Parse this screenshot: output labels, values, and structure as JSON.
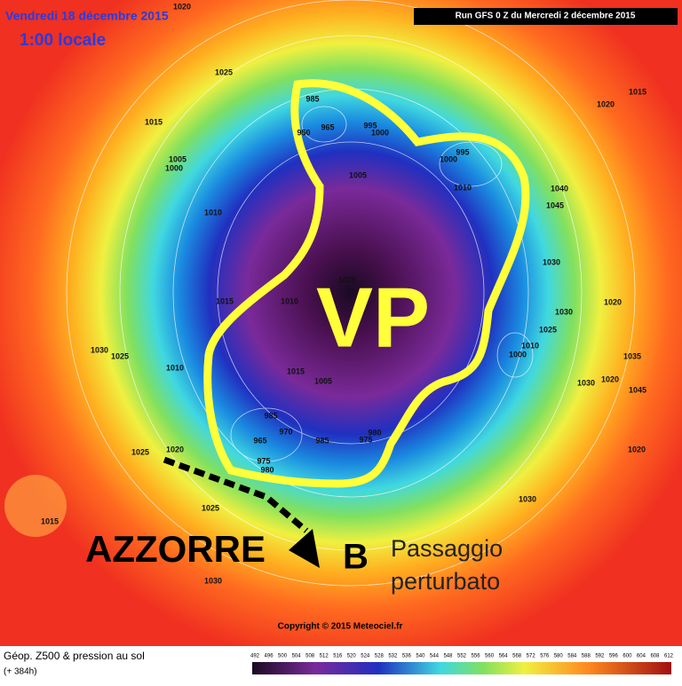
{
  "header": {
    "date": "Vendredi 18 décembre 2015",
    "time": "1:00 locale",
    "run": "Run GFS 0 Z du Mercredi 2 décembre 2015"
  },
  "annotations": {
    "vortex": "VP",
    "azores": "AZZORRE",
    "low": "B",
    "passage": [
      "Passaggio",
      "perturbato"
    ]
  },
  "isobar_labels": [
    1020,
    1025,
    1015,
    1005,
    1000,
    1010,
    1015,
    1030,
    1025,
    1010,
    1020,
    1025,
    1025,
    1015,
    1030,
    985,
    965,
    950,
    995,
    1000,
    1005,
    1000,
    995,
    1010,
    1040,
    1045,
    1030,
    1030,
    1025,
    1015,
    1020,
    1020,
    1035,
    1030,
    1020,
    1045,
    1020,
    1030,
    1025,
    1010,
    1015,
    1005,
    985,
    970,
    965,
    975,
    980,
    985,
    975,
    980,
    1010,
    1000
  ],
  "copyright": "Copyright © 2015 Meteociel.fr",
  "legend": {
    "title": "Géop. Z500 & pression au sol",
    "lead": "(+ 384h)",
    "scale": [
      492,
      496,
      500,
      504,
      508,
      512,
      516,
      520,
      524,
      528,
      532,
      536,
      540,
      544,
      548,
      552,
      556,
      560,
      564,
      568,
      572,
      576,
      580,
      584,
      588,
      592,
      596,
      600,
      604,
      608,
      612
    ]
  }
}
